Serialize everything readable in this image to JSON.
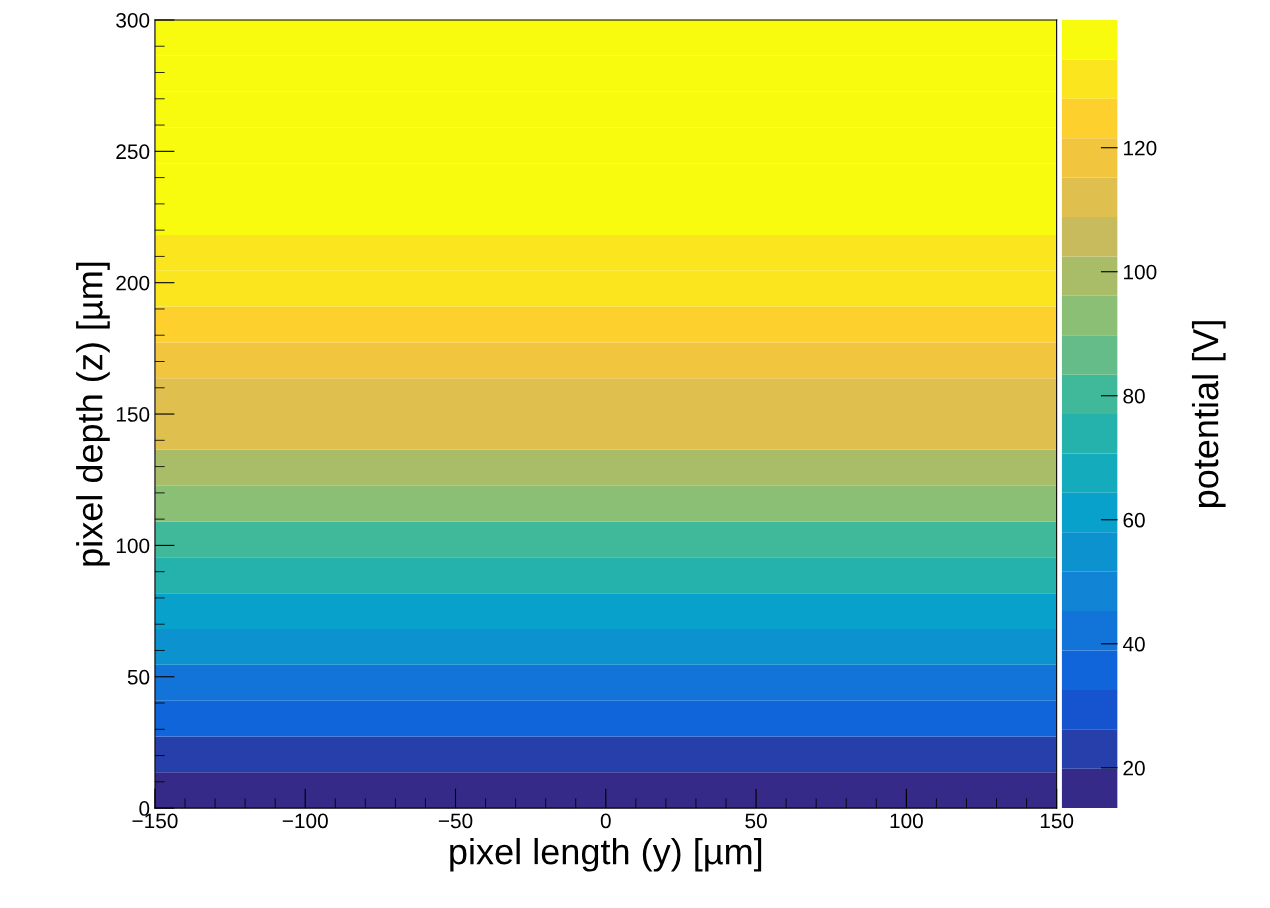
{
  "chart_data": {
    "type": "heatmap",
    "xlabel": "pixel length (y) [µm]",
    "ylabel": "pixel depth (z) [µm]",
    "clabel": "potential [V]",
    "xlim": [
      -150,
      150
    ],
    "ylim": [
      0,
      300
    ],
    "xticks": [
      {
        "value": -150,
        "label": "−150"
      },
      {
        "value": -100,
        "label": "−100"
      },
      {
        "value": -50,
        "label": "−50"
      },
      0,
      50,
      100,
      150
    ],
    "yticks": [
      0,
      50,
      100,
      150,
      200,
      250,
      300
    ],
    "cells": [
      [
        140
      ],
      [
        140
      ],
      [
        139
      ],
      [
        139
      ],
      [
        138
      ],
      [
        137
      ],
      [
        134
      ],
      [
        131
      ],
      [
        126
      ],
      [
        121
      ],
      [
        115
      ],
      [
        109
      ],
      [
        102
      ],
      [
        93
      ],
      [
        83
      ],
      [
        73
      ],
      [
        63
      ],
      [
        55
      ],
      [
        44
      ],
      [
        33
      ],
      [
        25
      ],
      [
        15
      ]
    ],
    "clim": [
      13.5,
      140.6
    ],
    "cticks": [
      20,
      40,
      60,
      80,
      100,
      120
    ],
    "grid": false
  }
}
